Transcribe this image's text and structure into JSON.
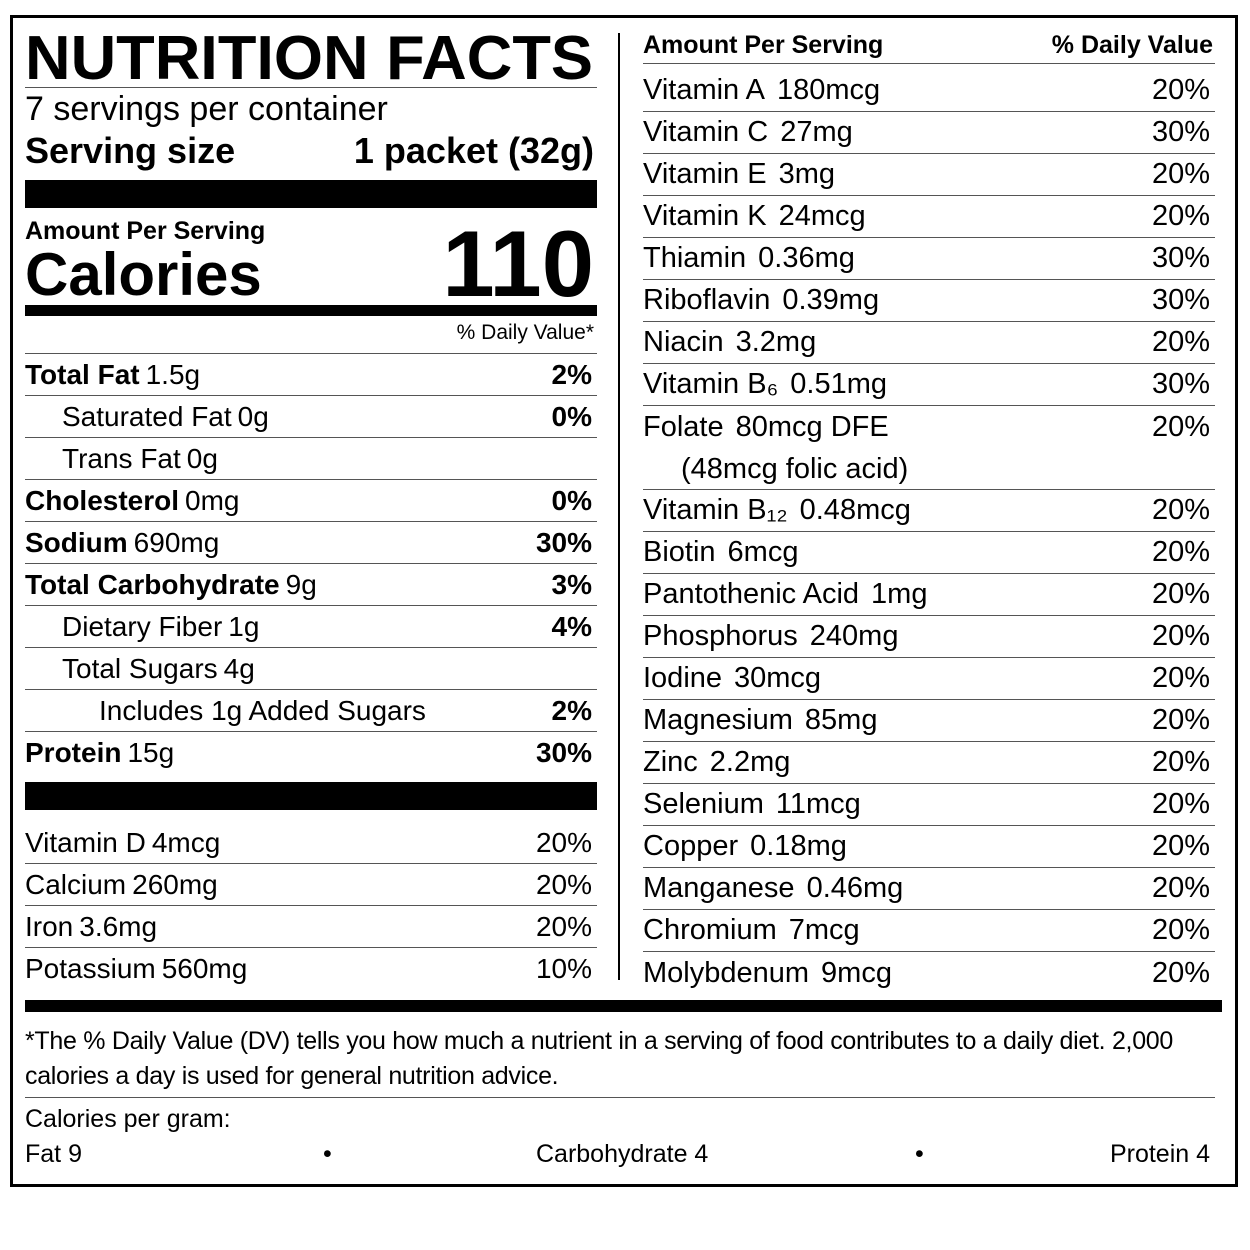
{
  "title": "NUTRITION FACTS",
  "servings": "7 servings per container",
  "serving_size": {
    "label": "Serving size",
    "value": "1 packet (32g)"
  },
  "calories": {
    "heading": "Amount Per Serving",
    "label": "Calories",
    "value": "110"
  },
  "dv_heading": "% Daily Value*",
  "nutrients": [
    {
      "name": "Total Fat",
      "amount": "1.5g",
      "dv": "2%"
    },
    {
      "name": "Saturated Fat",
      "amount": "0g",
      "dv": "0%"
    },
    {
      "name": "Trans Fat",
      "amount": "0g"
    },
    {
      "name": "Cholesterol",
      "amount": "0mg",
      "dv": "0%"
    },
    {
      "name": "Sodium",
      "amount": "690mg",
      "dv": "30%"
    },
    {
      "name": "Total Carbohydrate",
      "amount": "9g",
      "dv": "3%"
    },
    {
      "name": "Dietary Fiber",
      "amount": "1g",
      "dv": "4%"
    },
    {
      "name": "Total Sugars",
      "amount": "4g"
    },
    {
      "name": "Includes 1g Added Sugars",
      "dv": "2%"
    },
    {
      "name": "Protein",
      "amount": "15g",
      "dv": "30%"
    }
  ],
  "left_vitamins": [
    {
      "name": "Vitamin D",
      "amount": "4mcg",
      "dv": "20%"
    },
    {
      "name": "Calcium",
      "amount": "260mg",
      "dv": "20%"
    },
    {
      "name": "Iron",
      "amount": "3.6mg",
      "dv": "20%"
    },
    {
      "name": "Potassium",
      "amount": "560mg",
      "dv": "10%"
    }
  ],
  "right_column": {
    "heading": "Amount Per Serving",
    "dv_heading": "% Daily Value",
    "rows": [
      {
        "name": "Vitamin A",
        "amount": "180mcg",
        "dv": "20%"
      },
      {
        "name": "Vitamin C",
        "amount": "27mg",
        "dv": "30%"
      },
      {
        "name": "Vitamin E",
        "amount": "3mg",
        "dv": "20%"
      },
      {
        "name": "Vitamin K",
        "amount": "24mcg",
        "dv": "20%"
      },
      {
        "name": "Thiamin",
        "amount": "0.36mg",
        "dv": "30%"
      },
      {
        "name": "Riboflavin",
        "amount": "0.39mg",
        "dv": "30%"
      },
      {
        "name": "Niacin",
        "amount": "3.2mg",
        "dv": "20%"
      },
      {
        "name": "Vitamin B₆",
        "amount": "0.51mg",
        "dv": "30%"
      },
      {
        "name": "Folate",
        "amount": "80mcg DFE",
        "note": "(48mcg folic acid)",
        "dv": "20%"
      },
      {
        "name": "Vitamin B₁₂",
        "amount": "0.48mcg",
        "dv": "20%"
      },
      {
        "name": "Biotin",
        "amount": "6mcg",
        "dv": "20%"
      },
      {
        "name": "Pantothenic Acid",
        "amount": "1mg",
        "dv": "20%"
      },
      {
        "name": "Phosphorus",
        "amount": "240mg",
        "dv": "20%"
      },
      {
        "name": "Iodine",
        "amount": "30mcg",
        "dv": "20%"
      },
      {
        "name": "Magnesium",
        "amount": "85mg",
        "dv": "20%"
      },
      {
        "name": "Zinc",
        "amount": "2.2mg",
        "dv": "20%"
      },
      {
        "name": "Selenium",
        "amount": "11mcg",
        "dv": "20%"
      },
      {
        "name": "Copper",
        "amount": "0.18mg",
        "dv": "20%"
      },
      {
        "name": "Manganese",
        "amount": "0.46mg",
        "dv": "20%"
      },
      {
        "name": "Chromium",
        "amount": "7mcg",
        "dv": "20%"
      },
      {
        "name": "Molybdenum",
        "amount": "9mcg",
        "dv": "20%"
      }
    ]
  },
  "footnote": "*The % Daily Value (DV) tells you how much a nutrient in a serving of food contributes to a daily diet. 2,000 calories a day is used for general nutrition advice.",
  "calories_per_gram": {
    "label": "Calories per gram:",
    "fat": "Fat 9",
    "carbohydrate": "Carbohydrate 4",
    "protein": "Protein 4"
  }
}
